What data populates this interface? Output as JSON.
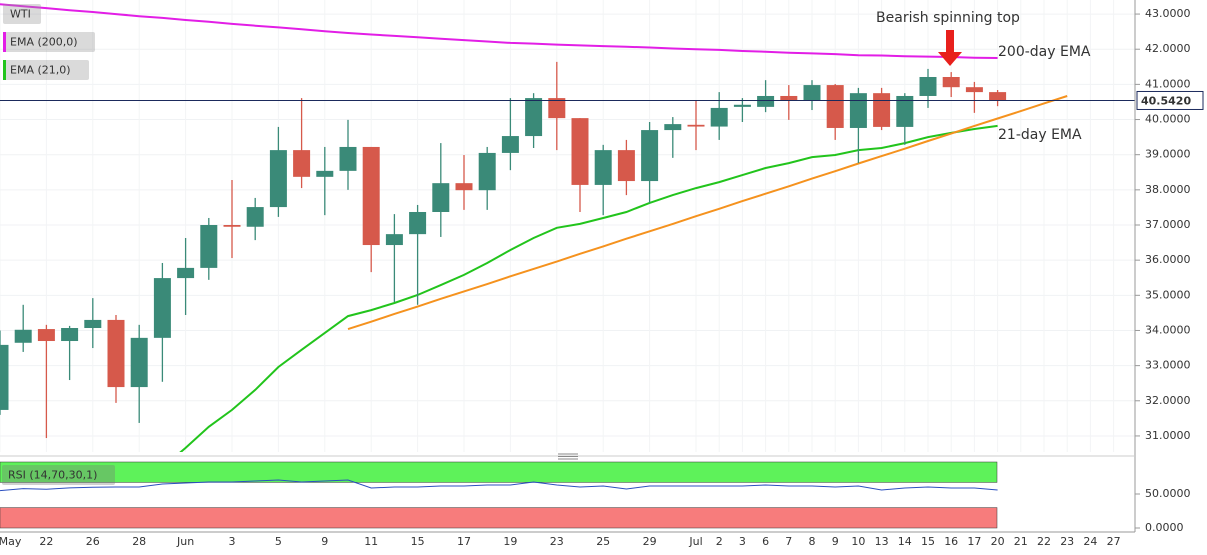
{
  "chart_data": {
    "type": "candlestick",
    "title": "WTI",
    "categories": [
      "May",
      null,
      "22",
      null,
      "26",
      null,
      "28",
      null,
      "Jun",
      null,
      "3",
      null,
      "5",
      null,
      "9",
      null,
      "11",
      null,
      "15",
      null,
      "17",
      null,
      "19",
      null,
      "23",
      null,
      "25",
      null,
      "29",
      null,
      "Jul",
      "2",
      "3",
      "6",
      "7",
      "8",
      "9",
      "10",
      "13",
      "14",
      "15",
      "16",
      "17",
      "20",
      "21",
      "22",
      "23",
      "24",
      "27"
    ],
    "open": [
      31.74,
      33.65,
      34.04,
      33.7,
      34.07,
      34.3,
      32.39,
      33.79,
      35.49,
      35.78,
      37.0,
      36.95,
      37.51,
      39.13,
      38.37,
      38.54,
      39.22,
      36.43,
      36.74,
      37.37,
      38.19,
      37.99,
      39.05,
      39.53,
      40.61,
      40.04,
      38.14,
      39.13,
      38.25,
      39.7,
      39.85,
      39.8,
      40.36,
      40.36,
      40.67,
      40.55,
      40.98,
      39.76,
      40.75,
      39.79,
      40.67,
      41.21,
      40.92,
      40.78,
      null,
      null,
      null,
      null,
      null
    ],
    "high": [
      34.0,
      34.73,
      34.16,
      34.13,
      34.92,
      34.44,
      34.16,
      35.92,
      36.63,
      37.2,
      38.28,
      37.77,
      39.79,
      40.61,
      39.22,
      39.99,
      39.22,
      37.31,
      37.57,
      39.33,
      38.99,
      39.22,
      40.61,
      40.75,
      41.64,
      40.04,
      39.28,
      39.42,
      39.93,
      40.07,
      40.55,
      40.78,
      40.61,
      41.12,
      40.98,
      41.12,
      41.01,
      40.9,
      40.9,
      40.75,
      41.44,
      41.35,
      41.07,
      40.84,
      null,
      null,
      null,
      null,
      null
    ],
    "low": [
      31.6,
      33.39,
      30.94,
      32.59,
      33.5,
      31.94,
      31.37,
      32.54,
      34.44,
      35.44,
      36.06,
      36.57,
      37.23,
      38.05,
      37.28,
      38.0,
      35.66,
      34.81,
      34.73,
      36.66,
      37.43,
      37.43,
      38.56,
      39.19,
      39.13,
      37.37,
      37.28,
      37.85,
      37.63,
      38.91,
      39.13,
      39.42,
      39.93,
      40.21,
      39.99,
      40.27,
      39.42,
      38.76,
      39.7,
      39.28,
      40.33,
      40.64,
      40.19,
      40.38,
      null,
      null,
      null,
      null,
      null
    ],
    "close": [
      33.59,
      34.02,
      33.7,
      34.07,
      34.3,
      32.39,
      33.79,
      35.49,
      35.78,
      37.0,
      36.95,
      37.51,
      39.13,
      38.37,
      38.54,
      39.22,
      36.43,
      36.74,
      37.37,
      38.19,
      37.99,
      39.05,
      39.53,
      40.61,
      40.04,
      38.14,
      39.13,
      38.25,
      39.7,
      39.87,
      39.8,
      40.33,
      40.42,
      40.67,
      40.55,
      40.98,
      39.76,
      40.75,
      39.79,
      40.67,
      41.21,
      40.92,
      40.78,
      40.55,
      null,
      null,
      null,
      null,
      null
    ],
    "up_color": "#3a8a78",
    "down_color": "#d6594b",
    "ylim": [
      30.6,
      43.4
    ],
    "yticks": [
      {
        "value": 31,
        "label": "31.0000"
      },
      {
        "value": 32,
        "label": "32.0000"
      },
      {
        "value": 33,
        "label": "33.0000"
      },
      {
        "value": 34,
        "label": "34.0000"
      },
      {
        "value": 35,
        "label": "35.0000"
      },
      {
        "value": 36,
        "label": "36.0000"
      },
      {
        "value": 37,
        "label": "37.0000"
      },
      {
        "value": 38,
        "label": "38.0000"
      },
      {
        "value": 39,
        "label": "39.0000"
      },
      {
        "value": 40,
        "label": "40.0000"
      },
      {
        "value": 41,
        "label": "41.0000"
      },
      {
        "value": 42,
        "label": "42.0000"
      },
      {
        "value": 43,
        "label": "43.0000"
      }
    ],
    "grid": true,
    "last_price": {
      "value": 40.542,
      "label": "40.5420",
      "color": "#1b2a5c"
    },
    "series": [
      {
        "name": "EMA (200,0)",
        "color": "#e21ee6",
        "values": [
          43.28,
          43.22,
          43.17,
          43.11,
          43.06,
          43.0,
          42.94,
          42.89,
          42.83,
          42.78,
          42.72,
          42.67,
          42.62,
          42.57,
          42.51,
          42.46,
          42.42,
          42.38,
          42.34,
          42.3,
          42.26,
          42.22,
          42.18,
          42.16,
          42.13,
          42.11,
          42.09,
          42.07,
          42.05,
          42.02,
          42.0,
          41.98,
          41.95,
          41.93,
          41.9,
          41.88,
          41.86,
          41.83,
          41.82,
          41.8,
          41.79,
          41.78,
          41.76,
          41.75,
          null,
          null,
          null,
          null,
          null
        ]
      },
      {
        "name": "EMA (21,0)",
        "color": "#22c41c",
        "values": [
          null,
          null,
          null,
          null,
          null,
          null,
          null,
          30.1,
          30.66,
          31.26,
          31.74,
          32.31,
          32.96,
          33.45,
          33.93,
          34.41,
          34.58,
          34.78,
          35.01,
          35.29,
          35.58,
          35.92,
          36.29,
          36.63,
          36.92,
          37.03,
          37.2,
          37.37,
          37.63,
          37.85,
          38.05,
          38.22,
          38.42,
          38.62,
          38.76,
          38.93,
          38.99,
          39.13,
          39.19,
          39.33,
          39.5,
          39.62,
          39.73,
          39.82,
          null,
          null,
          null,
          null,
          null
        ]
      }
    ],
    "trendline": {
      "color": "#f5921e",
      "values": [
        null,
        null,
        null,
        null,
        null,
        null,
        null,
        null,
        null,
        null,
        null,
        null,
        null,
        null,
        null,
        34.04,
        34.25,
        34.47,
        34.68,
        34.9,
        35.11,
        35.32,
        35.54,
        35.75,
        35.96,
        36.18,
        36.39,
        36.61,
        36.82,
        37.03,
        37.25,
        37.46,
        37.68,
        37.89,
        38.1,
        38.32,
        38.53,
        38.75,
        38.96,
        39.17,
        39.39,
        39.6,
        39.82,
        40.03,
        40.24,
        40.46,
        40.67,
        null,
        null
      ]
    },
    "annotations": [
      {
        "text": "Bearish spinning top",
        "color": "#e8201c"
      },
      {
        "text": "200-day EMA",
        "color": "#e21ee6"
      },
      {
        "text": "21-day EMA",
        "color": "#22c41c"
      }
    ],
    "rsi": {
      "name": "RSI (14,70,30,1)",
      "color": "#2b4fc0",
      "values": [
        55.0,
        58.0,
        57.0,
        59.0,
        60.0,
        60.3,
        60.3,
        64.7,
        66.2,
        67.6,
        67.6,
        69.1,
        70.6,
        67.6,
        69.1,
        70.6,
        58.8,
        60.3,
        60.3,
        61.8,
        61.8,
        63.2,
        63.2,
        67.6,
        63.2,
        60.3,
        61.8,
        57.4,
        61.8,
        61.8,
        61.8,
        61.8,
        61.8,
        63.2,
        61.8,
        61.8,
        60.3,
        61.8,
        55.9,
        58.8,
        60.3,
        58.8,
        58.8,
        55.9,
        null,
        null,
        null,
        null,
        null
      ],
      "ylim": [
        0,
        100
      ],
      "yticks": [
        {
          "value": 50,
          "label": "50.0000"
        },
        {
          "value": 0,
          "label": "0.0000"
        }
      ],
      "upper": 70,
      "lower": 30,
      "upper_color": "#5ef25a",
      "lower_color": "#f77c7c"
    }
  }
}
